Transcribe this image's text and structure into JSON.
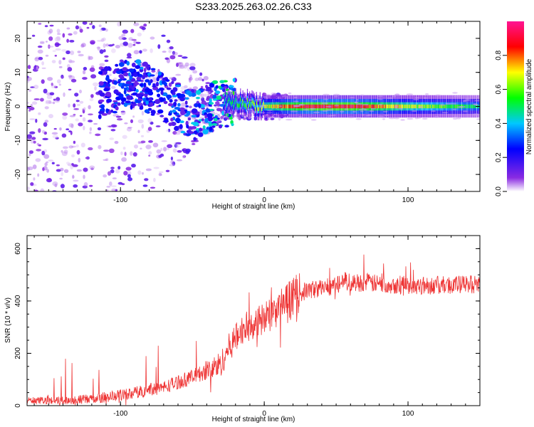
{
  "title": "S233.2025.263.02.26.C33",
  "chart_data": [
    {
      "type": "heatmap",
      "xlabel": "Height of straight line (km)",
      "ylabel": "Frequency (Hz)",
      "xlim": [
        -165,
        150
      ],
      "ylim": [
        -25,
        25
      ],
      "x_ticks": [
        "-100",
        "0",
        "100"
      ],
      "y_ticks": [
        "-20",
        "-10",
        "0",
        "10",
        "20"
      ],
      "colorbar": {
        "label": "Normalized spectral amplitude",
        "range": [
          0,
          1
        ],
        "ticks": [
          "0.0",
          "0.2",
          "0.4",
          "0.6",
          "0.8"
        ],
        "colors": [
          "#ffffff",
          "#8a2be2",
          "#0000ff",
          "#00c8ff",
          "#00ff00",
          "#ffff00",
          "#ff0000",
          "#ff1493"
        ]
      },
      "description_series": {
        "x": [
          -160,
          -120,
          -90,
          -70,
          -50,
          -30,
          -15,
          0,
          30,
          60,
          100,
          150
        ],
        "dominant_frequency_hz": [
          0,
          3,
          7,
          3,
          -3,
          1,
          1,
          0,
          0,
          0,
          0,
          0
        ],
        "peak_amplitude": [
          0.15,
          0.2,
          0.3,
          0.3,
          0.35,
          0.45,
          0.6,
          0.7,
          0.95,
          0.95,
          0.7,
          0.5
        ]
      }
    },
    {
      "type": "line",
      "xlabel": "Height of straight line (km)",
      "ylabel": "SNR (10 * v/v)",
      "xlim": [
        -165,
        150
      ],
      "ylim": [
        0,
        650
      ],
      "x_ticks": [
        "-100",
        "0",
        "100"
      ],
      "y_ticks": [
        "0",
        "200",
        "400",
        "600"
      ],
      "color": "#ee3333",
      "series": [
        {
          "name": "SNR",
          "x": [
            -165,
            -140,
            -120,
            -100,
            -80,
            -70,
            -60,
            -50,
            -40,
            -30,
            -25,
            -22,
            -20,
            -15,
            -10,
            -5,
            0,
            10,
            20,
            30,
            40,
            50,
            55,
            60,
            70,
            80,
            100,
            120,
            150
          ],
          "values": [
            20,
            20,
            25,
            40,
            60,
            70,
            90,
            110,
            130,
            160,
            220,
            240,
            260,
            290,
            310,
            320,
            330,
            370,
            420,
            440,
            450,
            460,
            480,
            470,
            470,
            465,
            460,
            460,
            465
          ]
        }
      ]
    }
  ]
}
